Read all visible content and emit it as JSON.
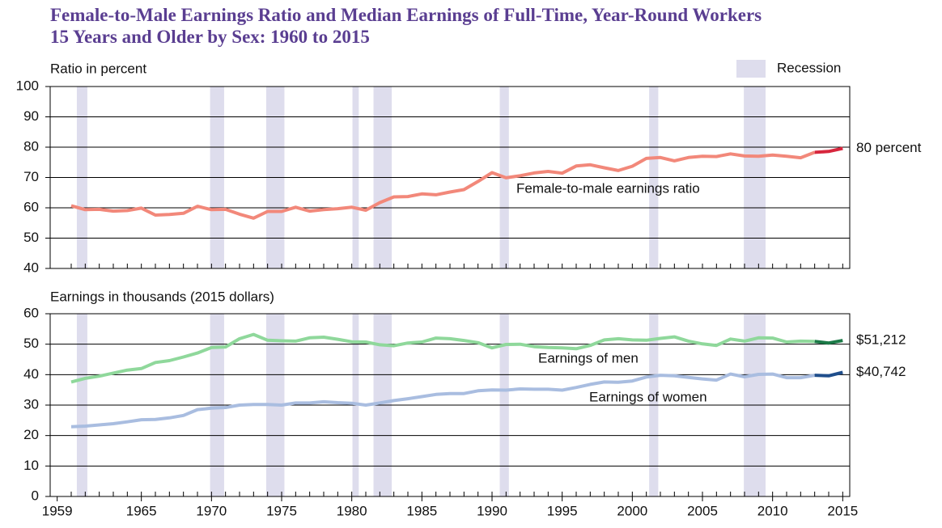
{
  "title": [
    "Female-to-Male Earnings Ratio and Median Earnings of Full-Time, Year-Round Workers",
    "15 Years and Older by Sex: 1960 to 2015"
  ],
  "legend": {
    "label": "Recession",
    "color": "#dedded"
  },
  "recessions": [
    [
      1960.4,
      1961.15
    ],
    [
      1969.9,
      1970.9
    ],
    [
      1973.9,
      1975.2
    ],
    [
      1980.05,
      1980.5
    ],
    [
      1981.55,
      1982.85
    ],
    [
      1990.55,
      1991.2
    ],
    [
      2001.2,
      2001.85
    ],
    [
      2007.95,
      2009.5
    ]
  ],
  "chart_data": [
    {
      "type": "line",
      "y_label": "Ratio in percent",
      "x": [
        1960,
        1961,
        1962,
        1963,
        1964,
        1965,
        1966,
        1967,
        1968,
        1969,
        1970,
        1971,
        1972,
        1973,
        1974,
        1975,
        1976,
        1977,
        1978,
        1979,
        1980,
        1981,
        1982,
        1983,
        1984,
        1985,
        1986,
        1987,
        1988,
        1989,
        1990,
        1991,
        1992,
        1993,
        1994,
        1995,
        1996,
        1997,
        1998,
        1999,
        2000,
        2001,
        2002,
        2003,
        2004,
        2005,
        2006,
        2007,
        2008,
        2009,
        2010,
        2011,
        2012,
        2013,
        2014,
        2015
      ],
      "xlim": [
        1958.5,
        2015.5
      ],
      "ylim": [
        40,
        100
      ],
      "yticks": [
        40,
        50,
        60,
        70,
        80,
        90,
        100
      ],
      "grid": true,
      "series": [
        {
          "name": "Female-to-male earnings ratio",
          "color": "#f2887a",
          "recent_color": "#d7263d",
          "recent_from": 2013,
          "values": [
            60.7,
            59.4,
            59.5,
            58.9,
            59.1,
            59.9,
            57.6,
            57.8,
            58.2,
            60.5,
            59.4,
            59.5,
            57.9,
            56.6,
            58.8,
            58.8,
            60.2,
            58.9,
            59.4,
            59.7,
            60.2,
            59.2,
            61.7,
            63.6,
            63.7,
            64.6,
            64.3,
            65.2,
            66.0,
            68.7,
            71.6,
            69.9,
            70.6,
            71.5,
            72.0,
            71.4,
            73.8,
            74.2,
            73.2,
            72.3,
            73.7,
            76.3,
            76.6,
            75.5,
            76.6,
            77.0,
            76.9,
            77.8,
            77.1,
            77.0,
            77.4,
            77.0,
            76.5,
            78.3,
            78.6,
            79.6
          ],
          "value_labels": [
            null,
            null,
            null,
            null,
            null,
            null,
            null,
            null,
            null,
            null,
            null,
            null,
            null,
            null,
            null,
            null,
            null,
            null,
            null,
            null,
            null,
            null,
            null,
            null,
            null,
            null,
            null,
            null,
            null,
            null,
            null,
            null,
            null,
            null,
            null,
            null,
            null,
            null,
            null,
            null,
            null,
            null,
            null,
            null,
            null,
            null,
            null,
            null,
            null,
            null,
            null,
            null,
            null,
            null,
            null,
            "80 percent"
          ]
        }
      ]
    },
    {
      "type": "line",
      "y_label": "Earnings in thousands (2015 dollars)",
      "x": [
        1960,
        1961,
        1962,
        1963,
        1964,
        1965,
        1966,
        1967,
        1968,
        1969,
        1970,
        1971,
        1972,
        1973,
        1974,
        1975,
        1976,
        1977,
        1978,
        1979,
        1980,
        1981,
        1982,
        1983,
        1984,
        1985,
        1986,
        1987,
        1988,
        1989,
        1990,
        1991,
        1992,
        1993,
        1994,
        1995,
        1996,
        1997,
        1998,
        1999,
        2000,
        2001,
        2002,
        2003,
        2004,
        2005,
        2006,
        2007,
        2008,
        2009,
        2010,
        2011,
        2012,
        2013,
        2014,
        2015
      ],
      "xlim": [
        1958.5,
        2015.5
      ],
      "xticks": [
        1959,
        1965,
        1970,
        1975,
        1980,
        1985,
        1990,
        1995,
        2000,
        2005,
        2010,
        2015
      ],
      "ylim": [
        0,
        60
      ],
      "yticks": [
        0,
        10,
        20,
        30,
        40,
        50,
        60
      ],
      "grid": true,
      "series": [
        {
          "name": "Earnings of men",
          "color": "#8fd89b",
          "recent_color": "#1b7a47",
          "recent_from": 2013,
          "values": [
            37.6,
            38.8,
            39.5,
            40.5,
            41.5,
            42.0,
            44.0,
            44.6,
            45.8,
            47.1,
            48.9,
            49.1,
            51.8,
            53.2,
            51.3,
            51.1,
            51.0,
            52.1,
            52.3,
            51.6,
            50.8,
            50.7,
            49.8,
            49.5,
            50.4,
            50.7,
            52.0,
            51.8,
            51.2,
            50.5,
            48.8,
            49.9,
            50.0,
            49.2,
            48.9,
            48.8,
            48.5,
            49.6,
            51.4,
            51.8,
            51.4,
            51.3,
            51.9,
            52.4,
            51.0,
            50.1,
            49.6,
            51.7,
            51.0,
            52.1,
            52.0,
            50.7,
            51.0,
            50.9,
            50.4,
            51.212
          ],
          "value_labels": [
            null,
            null,
            null,
            null,
            null,
            null,
            null,
            null,
            null,
            null,
            null,
            null,
            null,
            null,
            null,
            null,
            null,
            null,
            null,
            null,
            null,
            null,
            null,
            null,
            null,
            null,
            null,
            null,
            null,
            null,
            null,
            null,
            null,
            null,
            null,
            null,
            null,
            null,
            null,
            null,
            null,
            null,
            null,
            null,
            null,
            null,
            null,
            null,
            null,
            null,
            null,
            null,
            null,
            null,
            null,
            "$51,212"
          ]
        },
        {
          "name": "Earnings of women",
          "color": "#a9bde0",
          "recent_color": "#1f4e8c",
          "recent_from": 2013,
          "values": [
            22.9,
            23.1,
            23.5,
            23.9,
            24.5,
            25.2,
            25.3,
            25.8,
            26.6,
            28.5,
            29.0,
            29.2,
            30.0,
            30.2,
            30.2,
            30.0,
            30.7,
            30.7,
            31.1,
            30.8,
            30.6,
            30.0,
            30.7,
            31.5,
            32.1,
            32.8,
            33.5,
            33.8,
            33.8,
            34.7,
            35.0,
            34.9,
            35.3,
            35.2,
            35.2,
            34.9,
            35.8,
            36.8,
            37.6,
            37.5,
            37.9,
            39.2,
            39.8,
            39.6,
            39.1,
            38.6,
            38.2,
            40.2,
            39.3,
            40.1,
            40.2,
            39.0,
            39.0,
            39.8,
            39.6,
            40.742
          ],
          "value_labels": [
            null,
            null,
            null,
            null,
            null,
            null,
            null,
            null,
            null,
            null,
            null,
            null,
            null,
            null,
            null,
            null,
            null,
            null,
            null,
            null,
            null,
            null,
            null,
            null,
            null,
            null,
            null,
            null,
            null,
            null,
            null,
            null,
            null,
            null,
            null,
            null,
            null,
            null,
            null,
            null,
            null,
            null,
            null,
            null,
            null,
            null,
            null,
            null,
            null,
            null,
            null,
            null,
            null,
            null,
            null,
            "$40,742"
          ]
        }
      ]
    }
  ]
}
